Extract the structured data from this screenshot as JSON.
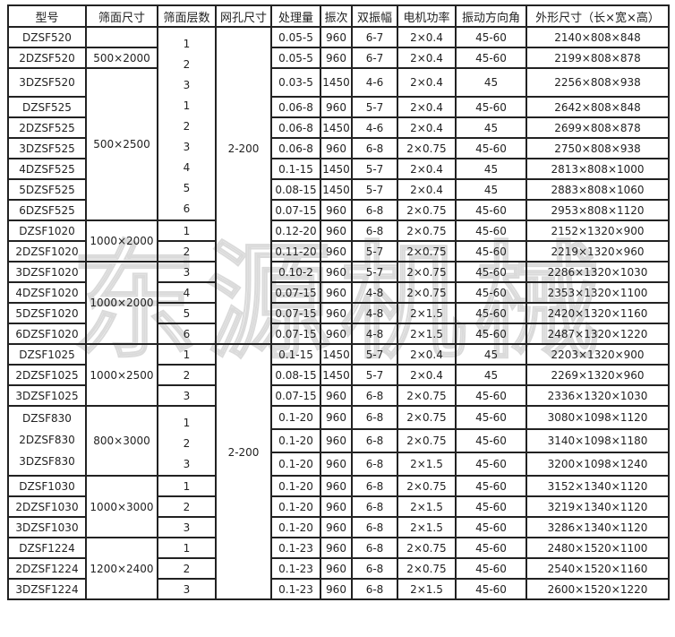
{
  "header": [
    "型号",
    "筛面尺寸",
    "筛面层数",
    "网孔尺寸",
    "处理量",
    "振次",
    "双振幅",
    "电机功率",
    "振动方向角",
    "外形尺寸（长×宽×高）"
  ],
  "rows": [
    {
      "model": "DZSF520",
      "throughput": "0.05-5",
      "freq": "960",
      "amplitude": "6-7",
      "power": "2×0.4",
      "angle": "45-60",
      "dims": "2140×808×848"
    },
    {
      "model": "2DZSF520",
      "throughput": "0.05-5",
      "freq": "960",
      "amplitude": "6-7",
      "power": "2×0.4",
      "angle": "45-60",
      "dims": "2199×808×878"
    },
    {
      "model": "3DZSF520",
      "throughput": "0.03-5",
      "freq": "1450",
      "amplitude": "4-6",
      "power": "2×0.4",
      "angle": "45",
      "dims": "2256×808×938"
    },
    {
      "model": "DZSF525",
      "throughput": "0.06-8",
      "freq": "960",
      "amplitude": "5-7",
      "power": "2×0.4",
      "angle": "45-60",
      "dims": "2642×808×848"
    },
    {
      "model": "2DZSF525",
      "throughput": "0.06-8",
      "freq": "1450",
      "amplitude": "4-6",
      "power": "2×0.4",
      "angle": "45",
      "dims": "2699×808×878"
    },
    {
      "model": "3DZSF525",
      "throughput": "0.06-8",
      "freq": "960",
      "amplitude": "6-8",
      "power": "2×0.75",
      "angle": "45-60",
      "dims": "2750×808×938"
    },
    {
      "model": "4DZSF525",
      "throughput": "0.1-15",
      "freq": "1450",
      "amplitude": "5-7",
      "power": "2×0.4",
      "angle": "45",
      "dims": "2813×808×1000"
    },
    {
      "model": "5DZSF525",
      "throughput": "0.08-15",
      "freq": "1450",
      "amplitude": "5-7",
      "power": "2×0.4",
      "angle": "45",
      "dims": "2883×808×1060"
    },
    {
      "model": "6DZSF525",
      "throughput": "0.07-15",
      "freq": "960",
      "amplitude": "6-8",
      "power": "2×0.75",
      "angle": "45-60",
      "dims": "2953×808×1120"
    },
    {
      "model": "DZSF1020",
      "throughput": "0.12-20",
      "freq": "960",
      "amplitude": "6-8",
      "power": "2×0.75",
      "angle": "45-60",
      "dims": "2152×1320×900"
    },
    {
      "model": "2DZSF1020",
      "throughput": "0.11-20",
      "freq": "960",
      "amplitude": "5-7",
      "power": "2×0.75",
      "angle": "45-60",
      "dims": "2219×1320×960"
    },
    {
      "model": "3DZSF1020",
      "throughput": "0.10-2",
      "freq": "960",
      "amplitude": "5-7",
      "power": "2×0.75",
      "angle": "45-60",
      "dims": "2286×1320×1030"
    },
    {
      "model": "4DZSF1020",
      "throughput": "0.07-15",
      "freq": "960",
      "amplitude": "4-8",
      "power": "2×0.75",
      "angle": "45-60",
      "dims": "2353×1320×1100"
    },
    {
      "model": "5DZSF1020",
      "throughput": "0.07-15",
      "freq": "960",
      "amplitude": "4-8",
      "power": "2×1.5",
      "angle": "45-60",
      "dims": "2420×1320×1160"
    },
    {
      "model": "6DZSF1020",
      "throughput": "0.07-15",
      "freq": "960",
      "amplitude": "4-8",
      "power": "2×1.5",
      "angle": "45-60",
      "dims": "2487×1320×1220"
    },
    {
      "model": "DZSF1025",
      "throughput": "0.1-15",
      "freq": "1450",
      "amplitude": "5-7",
      "power": "2×0.4",
      "angle": "45",
      "dims": "2203×1320×900"
    },
    {
      "model": "2DZSF1025",
      "throughput": "0.08-15",
      "freq": "1450",
      "amplitude": "5-7",
      "power": "2×0.4",
      "angle": "45",
      "dims": "2269×1320×960"
    },
    {
      "model": "3DZSF1025",
      "throughput": "0.07-15",
      "freq": "960",
      "amplitude": "6-8",
      "power": "2×0.75",
      "angle": "45-60",
      "dims": "2336×1320×1030"
    },
    {
      "model": "DZSF830",
      "throughput": "0.1-20",
      "freq": "960",
      "amplitude": "6-8",
      "power": "2×0.75",
      "angle": "45-60",
      "dims": "3080×1098×1120"
    },
    {
      "model": "2DZSF830",
      "throughput": "0.1-20",
      "freq": "960",
      "amplitude": "6-8",
      "power": "2×0.75",
      "angle": "45-60",
      "dims": "3140×1098×1180"
    },
    {
      "model": "3DZSF830",
      "throughput": "0.1-20",
      "freq": "960",
      "amplitude": "6-8",
      "power": "2×1.5",
      "angle": "45-60",
      "dims": "3200×1098×1240"
    },
    {
      "model": "DZSF1030",
      "throughput": "0.1-20",
      "freq": "960",
      "amplitude": "6-8",
      "power": "2×0.75",
      "angle": "45-60",
      "dims": "3152×1340×1120"
    },
    {
      "model": "2DZSF1030",
      "throughput": "0.1-20",
      "freq": "960",
      "amplitude": "6-8",
      "power": "2×1.5",
      "angle": "45-60",
      "dims": "3219×1340×1120"
    },
    {
      "model": "3DZSF1030",
      "throughput": "0.1-20",
      "freq": "960",
      "amplitude": "6-8",
      "power": "2×1.5",
      "angle": "45-60",
      "dims": "3286×1340×1120"
    },
    {
      "model": "DZSF1224",
      "throughput": "0.1-23",
      "freq": "960",
      "amplitude": "6-8",
      "power": "2×0.75",
      "angle": "45-60",
      "dims": "2480×1520×1100"
    },
    {
      "model": "2DZSF1224",
      "throughput": "0.1-23",
      "freq": "960",
      "amplitude": "6-8",
      "power": "2×0.75",
      "angle": "45-60",
      "dims": "2540×1520×1160"
    },
    {
      "model": "3DZSF1224",
      "throughput": "0.1-23",
      "freq": "960",
      "amplitude": "6-8",
      "power": "2×1.5",
      "angle": "45-60",
      "dims": "2600×1520×1220"
    }
  ],
  "model_groups": [
    {
      "span": 1
    },
    {
      "span": 1
    },
    {
      "span": 1
    },
    {
      "span": 1
    },
    {
      "span": 1
    },
    {
      "span": 1
    },
    {
      "span": 1
    },
    {
      "span": 1
    },
    {
      "span": 1
    },
    {
      "span": 1
    },
    {
      "span": 1
    },
    {
      "span": 1
    },
    {
      "span": 1
    },
    {
      "span": 1
    },
    {
      "span": 1
    },
    {
      "span": 1
    },
    {
      "span": 1
    },
    {
      "span": 1
    },
    {
      "span": 3
    },
    {
      "span": 1
    },
    {
      "span": 1
    },
    {
      "span": 1
    },
    {
      "span": 1
    },
    {
      "span": 1
    },
    {
      "span": 1
    }
  ],
  "size_groups": [
    {
      "label": "",
      "span": 1
    },
    {
      "label": "500×2000",
      "span": 1
    },
    {
      "label": "500×2500",
      "span": 7
    },
    {
      "label": "1000×2000",
      "span": 2
    },
    {
      "label": "1000×2000",
      "span": 4
    },
    {
      "label": "1000×2500",
      "span": 3
    },
    {
      "label": "800×3000",
      "span": 3
    },
    {
      "label": "1000×3000",
      "span": 3
    },
    {
      "label": "1200×2400",
      "span": 3
    }
  ],
  "layer_groups": [
    {
      "values": [
        "1",
        "2",
        "3",
        "1",
        "2",
        "3",
        "4",
        "5",
        "6"
      ],
      "span": 9
    },
    {
      "values": [
        "1"
      ],
      "span": 1
    },
    {
      "values": [
        "2"
      ],
      "span": 1
    },
    {
      "values": [
        "3"
      ],
      "span": 1
    },
    {
      "values": [
        "4"
      ],
      "span": 1
    },
    {
      "values": [
        "5"
      ],
      "span": 1
    },
    {
      "values": [
        "6"
      ],
      "span": 1
    },
    {
      "values": [
        "1"
      ],
      "span": 1
    },
    {
      "values": [
        "2"
      ],
      "span": 1
    },
    {
      "values": [
        "3"
      ],
      "span": 1
    },
    {
      "values": [
        "1",
        "2",
        "3"
      ],
      "span": 3
    },
    {
      "values": [
        "1"
      ],
      "span": 1
    },
    {
      "values": [
        "2"
      ],
      "span": 1
    },
    {
      "values": [
        "3"
      ],
      "span": 1
    },
    {
      "values": [
        "1"
      ],
      "span": 1
    },
    {
      "values": [
        "2"
      ],
      "span": 1
    },
    {
      "values": [
        "3"
      ],
      "span": 1
    }
  ],
  "mesh_groups": [
    {
      "label": "2-200",
      "span": 15
    },
    {
      "label": "2-200",
      "span": 12
    }
  ],
  "watermark": "东源机械"
}
